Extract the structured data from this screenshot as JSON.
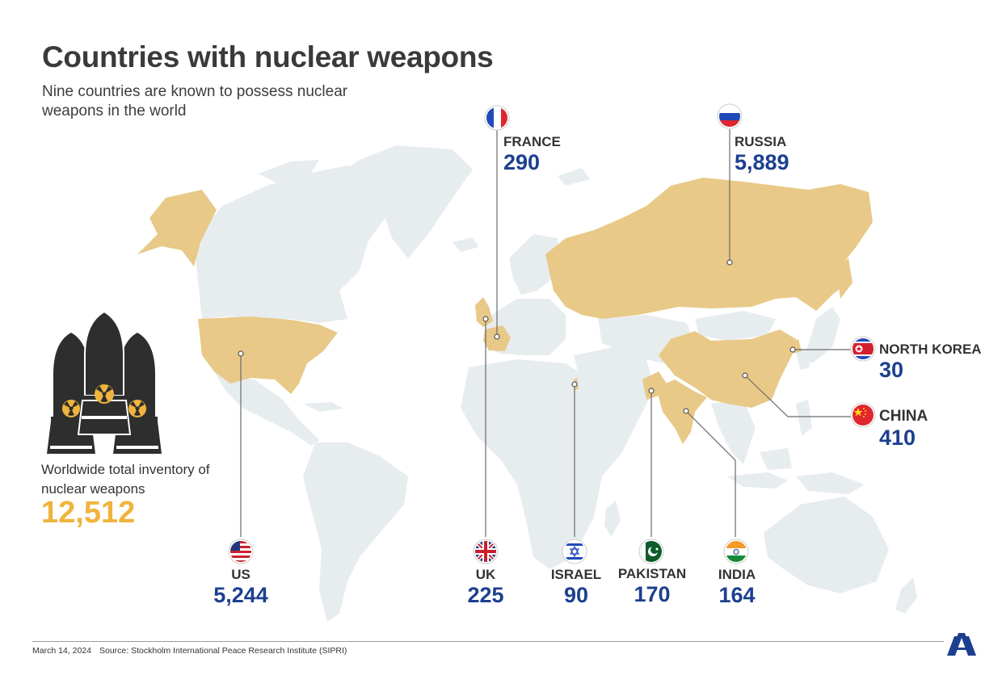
{
  "title": "Countries with nuclear weapons",
  "subtitle": "Nine countries are known to possess nuclear weapons in the world",
  "inventory": {
    "label": "Worldwide total inventory of nuclear weapons",
    "value": "12,512"
  },
  "countries": [
    {
      "key": "us",
      "name": "US",
      "value": "5,244",
      "flag": "us-flag-icon"
    },
    {
      "key": "uk",
      "name": "UK",
      "value": "225",
      "flag": "uk-flag-icon"
    },
    {
      "key": "france",
      "name": "FRANCE",
      "value": "290",
      "flag": "france-flag-icon"
    },
    {
      "key": "russia",
      "name": "RUSSIA",
      "value": "5,889",
      "flag": "russia-flag-icon"
    },
    {
      "key": "israel",
      "name": "ISRAEL",
      "value": "90",
      "flag": "israel-flag-icon"
    },
    {
      "key": "pakistan",
      "name": "PAKISTAN",
      "value": "170",
      "flag": "pakistan-flag-icon"
    },
    {
      "key": "india",
      "name": "INDIA",
      "value": "164",
      "flag": "india-flag-icon"
    },
    {
      "key": "china",
      "name": "CHINA",
      "value": "410",
      "flag": "china-flag-icon"
    },
    {
      "key": "north_korea",
      "name": "NORTH KOREA",
      "value": "30",
      "flag": "north-korea-flag-icon"
    }
  ],
  "footer": {
    "date": "March 14, 2024",
    "source": "Source: Stockholm International Peace Research Institute (SIPRI)"
  },
  "colors": {
    "map_land": "#e7ecef",
    "nuclear_country": "#e8c987",
    "value_text": "#1c3f8f",
    "inventory_value": "#f0b43c",
    "leader_line": "#6b6b6b",
    "logo": "#1c3f8f"
  },
  "icons": [
    "nuclear-warhead-icon",
    "anadolu-agency-logo-icon"
  ]
}
